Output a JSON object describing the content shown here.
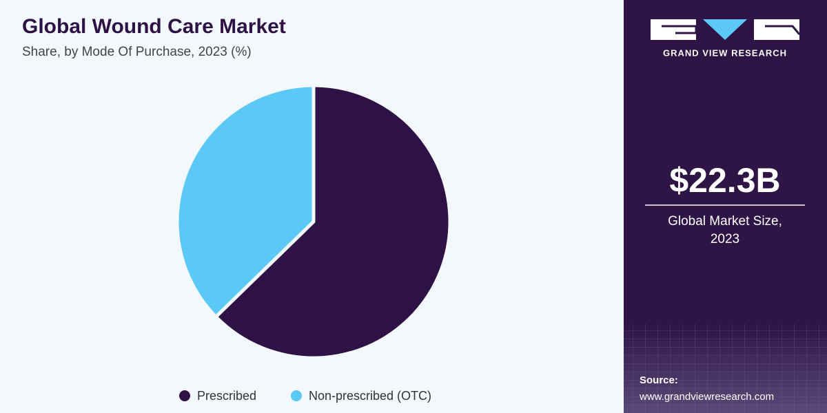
{
  "chart_data": {
    "type": "pie",
    "title": "Global Wound Care Market",
    "subtitle": "Share, by Mode Of Purchase, 2023 (%)",
    "categories": [
      "Prescribed",
      "Non-prescribed (OTC)"
    ],
    "values": [
      62.7,
      37.3
    ],
    "colors": [
      "#2e1245",
      "#5bc8f5"
    ],
    "legend": "bottom"
  },
  "sidebar": {
    "brand": "GRAND VIEW RESEARCH",
    "market_size": "$22.3B",
    "market_size_label": [
      "Global Market Size,",
      "2023"
    ],
    "source_label": "Source:",
    "source_url": "www.grandviewresearch.com"
  }
}
